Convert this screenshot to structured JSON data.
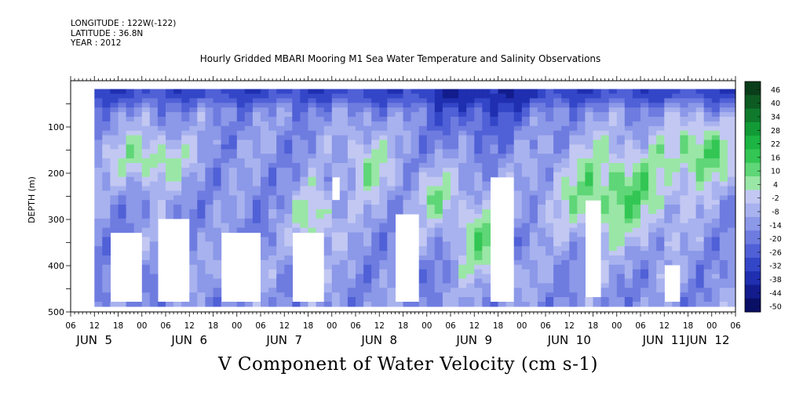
{
  "header": {
    "longitude": "LONGITUDE : 122W(-122)",
    "latitude": "LATITUDE : 36.8N",
    "year": "YEAR : 2012"
  },
  "title": "Hourly Gridded MBARI Mooring M1 Sea Water Temperature and Salinity Observations",
  "variable_title": "V Component of Water Velocity (cm s-1)",
  "chart_data": {
    "type": "heatmap",
    "title": "Hourly Gridded MBARI Mooring M1 Sea Water Temperature and Salinity Observations",
    "xlabel": "",
    "ylabel": "DEPTH (m)",
    "variable": "V Component of Water Velocity (cm s-1)",
    "x_axis": {
      "range_hours_labels": [
        "JUN 5 06",
        "JUN 12 06"
      ],
      "hour_tick_labels": [
        "06",
        "12",
        "18",
        "00",
        "06",
        "12",
        "18",
        "00",
        "06",
        "12",
        "18",
        "00",
        "06",
        "12",
        "18",
        "00",
        "06",
        "12",
        "18",
        "00",
        "06",
        "12",
        "18",
        "00",
        "06",
        "12",
        "18",
        "00",
        "06"
      ],
      "day_labels": [
        "JUN 5",
        "JUN 6",
        "JUN 7",
        "JUN 8",
        "JUN 9",
        "JUN 10",
        "JUN 11",
        "JUN 12"
      ]
    },
    "y_axis": {
      "ylim": [
        500,
        0
      ],
      "inverted": true,
      "tick_labels": [
        "100",
        "200",
        "300",
        "400",
        "500"
      ],
      "tick_values": [
        100,
        200,
        300,
        400,
        500
      ]
    },
    "colorbar": {
      "labels": [
        "46",
        "40",
        "34",
        "28",
        "22",
        "16",
        "10",
        "4",
        "-2",
        "-8",
        "-14",
        "-20",
        "-26",
        "-32",
        "-38",
        "-44",
        "-50"
      ],
      "levels": [
        46,
        40,
        34,
        28,
        22,
        16,
        10,
        4,
        -2,
        -8,
        -14,
        -20,
        -26,
        -32,
        -38,
        -44,
        -50
      ],
      "colors": [
        "#0a3d1a",
        "#0d5a22",
        "#0f7a2c",
        "#129a36",
        "#1cb442",
        "#33c654",
        "#5fd677",
        "#9ae6a6",
        "#c2c8f2",
        "#a8b2ee",
        "#8c98e8",
        "#6e7ce0",
        "#5060d6",
        "#3446c8",
        "#1f2fb0",
        "#121c8c",
        "#0a0f66"
      ],
      "range": [
        -50,
        48
      ]
    },
    "grid": false,
    "legend": "colorbar-right",
    "observed_patterns": {
      "near_surface": "strong negative (blue, about -20 to -44) across most of the record, strongest near JUN 9 12 to JUN 10 06",
      "positive_regions": "green patches (about 4 to 22) at mid-depths on JUN 5, JUN 7-8, and widespread on JUN 10 18 to JUN 12",
      "missing_data": "white gaps in deep water near JUN 6 06, JUN 7 06, JUN 8 06, JUN 9 06, JUN 10 06, JUN 11 06"
    }
  }
}
